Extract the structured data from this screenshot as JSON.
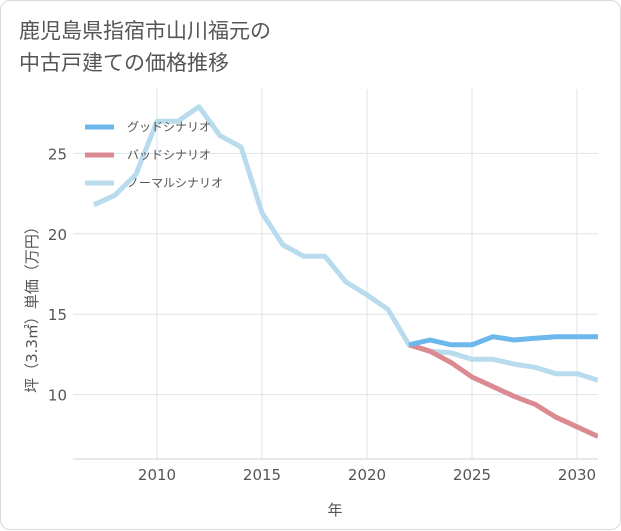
{
  "title": "鹿児島県指宿市山川福元の\n中古戸建ての価格推移",
  "chart_data": {
    "type": "line",
    "xlabel": "年",
    "ylabel": "坪（3.3㎡）単価（万円）",
    "xlim": [
      2006,
      2031
    ],
    "ylim": [
      6,
      29
    ],
    "xticks": [
      2010,
      2015,
      2020,
      2025,
      2030
    ],
    "yticks": [
      10,
      15,
      20,
      25
    ],
    "grid": true,
    "legend_position": "top-left",
    "series": [
      {
        "name": "グッドシナリオ",
        "color": "#6cb8ec",
        "x": [
          2022,
          2023,
          2024,
          2025,
          2026,
          2027,
          2028,
          2029,
          2030,
          2031
        ],
        "y": [
          13.1,
          13.4,
          13.1,
          13.1,
          13.6,
          13.4,
          13.5,
          13.6,
          13.6,
          13.6
        ]
      },
      {
        "name": "バッドシナリオ",
        "color": "#dc8a92",
        "x": [
          2022,
          2023,
          2024,
          2025,
          2026,
          2027,
          2028,
          2029,
          2030,
          2031
        ],
        "y": [
          13.1,
          12.7,
          12.0,
          11.1,
          10.5,
          9.9,
          9.4,
          8.6,
          8.0,
          7.4
        ]
      },
      {
        "name": "ノーマルシナリオ",
        "color": "#b8dcee",
        "x": [
          2007,
          2008,
          2009,
          2010,
          2011,
          2012,
          2013,
          2014,
          2015,
          2016,
          2017,
          2018,
          2019,
          2020,
          2021,
          2022,
          2023,
          2024,
          2025,
          2026,
          2027,
          2028,
          2029,
          2030,
          2031
        ],
        "y": [
          21.8,
          22.4,
          23.7,
          27.0,
          27.0,
          27.9,
          26.1,
          25.4,
          21.3,
          19.3,
          18.6,
          18.6,
          17.0,
          16.2,
          15.3,
          13.1,
          12.7,
          12.6,
          12.2,
          12.2,
          11.9,
          11.7,
          11.3,
          11.3,
          10.9
        ]
      }
    ]
  }
}
